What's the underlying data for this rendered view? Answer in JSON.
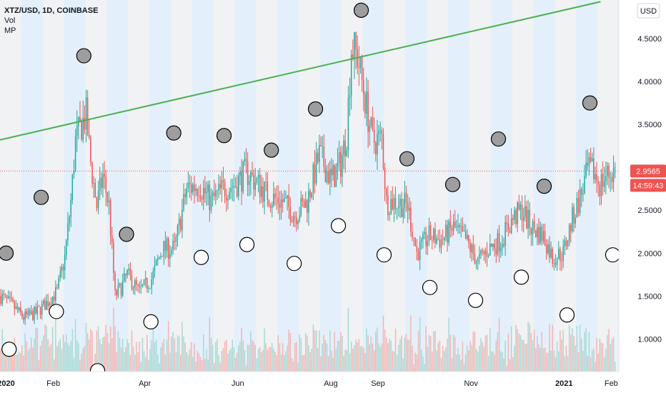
{
  "header": {
    "title": "XTZ/USD, 1D, COINBASE",
    "indicator1": "Vol",
    "indicator2": "MP"
  },
  "currency_button": "USD",
  "current_price": "2.9565",
  "countdown": "14:59:43",
  "colors": {
    "up": "#26a69a",
    "down": "#ef5350",
    "trend": "#4caf50",
    "band_blue": "#e3f0fb",
    "band_gray": "#f0f2f4",
    "vol_up": "#a8d9d3",
    "vol_down": "#f6b4b2",
    "label_bg": "#ef5350"
  },
  "chart_data": {
    "type": "candlestick",
    "title": "XTZ/USD, 1D, COINBASE",
    "y_ticks": [
      "4.5000",
      "4.0000",
      "3.5000",
      "3.0000",
      "2.5000",
      "2.0000",
      "1.5000",
      "1.0000"
    ],
    "y_tick_values": [
      4.5,
      4.0,
      3.5,
      3.0,
      2.5,
      2.0,
      1.5,
      1.0
    ],
    "ylim": [
      0.62,
      4.95
    ],
    "x_ticks": [
      "2020",
      "Feb",
      "Apr",
      "Jun",
      "Aug",
      "Sep",
      "Nov",
      "2021",
      "Feb"
    ],
    "x_tick_dates": [
      "2020-01-01",
      "2020-02-01",
      "2020-04-01",
      "2020-06-01",
      "2020-08-01",
      "2020-09-01",
      "2020-11-01",
      "2021-01-01",
      "2021-02-01"
    ],
    "xlim": [
      "2019-12-28",
      "2021-02-06"
    ],
    "price_path": [
      [
        "2019-12-28",
        1.5
      ],
      [
        "2020-01-05",
        1.38
      ],
      [
        "2020-01-12",
        1.25
      ],
      [
        "2020-01-20",
        1.3
      ],
      [
        "2020-01-27",
        1.42
      ],
      [
        "2020-02-03",
        1.55
      ],
      [
        "2020-02-08",
        1.95
      ],
      [
        "2020-02-12",
        2.6
      ],
      [
        "2020-02-15",
        3.3
      ],
      [
        "2020-02-19",
        3.5
      ],
      [
        "2020-02-22",
        3.6
      ],
      [
        "2020-02-25",
        3.05
      ],
      [
        "2020-02-29",
        2.55
      ],
      [
        "2020-03-04",
        2.9
      ],
      [
        "2020-03-08",
        2.55
      ],
      [
        "2020-03-12",
        1.5
      ],
      [
        "2020-03-16",
        1.6
      ],
      [
        "2020-03-20",
        1.75
      ],
      [
        "2020-03-28",
        1.55
      ],
      [
        "2020-04-05",
        1.7
      ],
      [
        "2020-04-12",
        2.05
      ],
      [
        "2020-04-20",
        2.05
      ],
      [
        "2020-04-28",
        2.75
      ],
      [
        "2020-05-06",
        2.8
      ],
      [
        "2020-05-14",
        2.6
      ],
      [
        "2020-05-22",
        2.75
      ],
      [
        "2020-05-30",
        2.8
      ],
      [
        "2020-06-06",
        2.95
      ],
      [
        "2020-06-14",
        2.8
      ],
      [
        "2020-06-22",
        2.65
      ],
      [
        "2020-06-30",
        2.6
      ],
      [
        "2020-07-08",
        2.45
      ],
      [
        "2020-07-16",
        2.6
      ],
      [
        "2020-07-24",
        3.15
      ],
      [
        "2020-08-01",
        2.85
      ],
      [
        "2020-08-07",
        3.05
      ],
      [
        "2020-08-11",
        3.4
      ],
      [
        "2020-08-14",
        4.4
      ],
      [
        "2020-08-18",
        4.3
      ],
      [
        "2020-08-24",
        3.7
      ],
      [
        "2020-08-28",
        3.3
      ],
      [
        "2020-09-03",
        3.35
      ],
      [
        "2020-09-06",
        2.6
      ],
      [
        "2020-09-12",
        2.6
      ],
      [
        "2020-09-20",
        2.55
      ],
      [
        "2020-09-26",
        2.0
      ],
      [
        "2020-10-04",
        2.2
      ],
      [
        "2020-10-12",
        2.15
      ],
      [
        "2020-10-20",
        2.3
      ],
      [
        "2020-10-28",
        2.15
      ],
      [
        "2020-11-05",
        1.9
      ],
      [
        "2020-11-12",
        2.05
      ],
      [
        "2020-11-20",
        2.15
      ],
      [
        "2020-11-28",
        2.4
      ],
      [
        "2020-12-04",
        2.5
      ],
      [
        "2020-12-10",
        2.3
      ],
      [
        "2020-12-18",
        2.2
      ],
      [
        "2020-12-24",
        1.95
      ],
      [
        "2020-12-31",
        2.0
      ],
      [
        "2021-01-06",
        2.4
      ],
      [
        "2021-01-12",
        2.7
      ],
      [
        "2021-01-16",
        2.95
      ],
      [
        "2021-01-20",
        2.95
      ],
      [
        "2021-01-24",
        2.8
      ],
      [
        "2021-01-28",
        2.9
      ],
      [
        "2021-02-03",
        2.96
      ]
    ],
    "trendline": {
      "start": [
        "2019-12-28",
        3.32
      ],
      "end": [
        "2021-01-25",
        4.93
      ]
    },
    "markers": [
      {
        "date": "2020-01-01",
        "price": 2.0,
        "fill": "gray"
      },
      {
        "date": "2020-01-03",
        "price": 0.88,
        "fill": "white"
      },
      {
        "date": "2020-01-24",
        "price": 2.65,
        "fill": "gray"
      },
      {
        "date": "2020-02-03",
        "price": 1.32,
        "fill": "white"
      },
      {
        "date": "2020-02-21",
        "price": 4.3,
        "fill": "gray"
      },
      {
        "date": "2020-03-01",
        "price": 0.63,
        "fill": "white"
      },
      {
        "date": "2020-03-20",
        "price": 2.22,
        "fill": "gray"
      },
      {
        "date": "2020-04-05",
        "price": 1.2,
        "fill": "white"
      },
      {
        "date": "2020-04-20",
        "price": 3.4,
        "fill": "gray"
      },
      {
        "date": "2020-05-08",
        "price": 1.95,
        "fill": "white"
      },
      {
        "date": "2020-05-23",
        "price": 3.37,
        "fill": "gray"
      },
      {
        "date": "2020-06-07",
        "price": 2.1,
        "fill": "white"
      },
      {
        "date": "2020-06-23",
        "price": 3.2,
        "fill": "gray"
      },
      {
        "date": "2020-07-08",
        "price": 1.88,
        "fill": "white"
      },
      {
        "date": "2020-07-22",
        "price": 3.68,
        "fill": "gray"
      },
      {
        "date": "2020-08-06",
        "price": 2.32,
        "fill": "white"
      },
      {
        "date": "2020-08-21",
        "price": 4.83,
        "fill": "gray"
      },
      {
        "date": "2020-09-05",
        "price": 1.98,
        "fill": "white"
      },
      {
        "date": "2020-09-20",
        "price": 3.1,
        "fill": "gray"
      },
      {
        "date": "2020-10-05",
        "price": 1.6,
        "fill": "white"
      },
      {
        "date": "2020-10-20",
        "price": 2.8,
        "fill": "gray"
      },
      {
        "date": "2020-11-04",
        "price": 1.45,
        "fill": "white"
      },
      {
        "date": "2020-11-19",
        "price": 3.33,
        "fill": "gray"
      },
      {
        "date": "2020-12-04",
        "price": 1.72,
        "fill": "white"
      },
      {
        "date": "2020-12-19",
        "price": 2.78,
        "fill": "gray"
      },
      {
        "date": "2021-01-03",
        "price": 1.28,
        "fill": "white"
      },
      {
        "date": "2021-01-18",
        "price": 3.75,
        "fill": "gray"
      },
      {
        "date": "2021-02-02",
        "price": 1.98,
        "fill": "white"
      }
    ],
    "legend": "none",
    "grid": false
  }
}
